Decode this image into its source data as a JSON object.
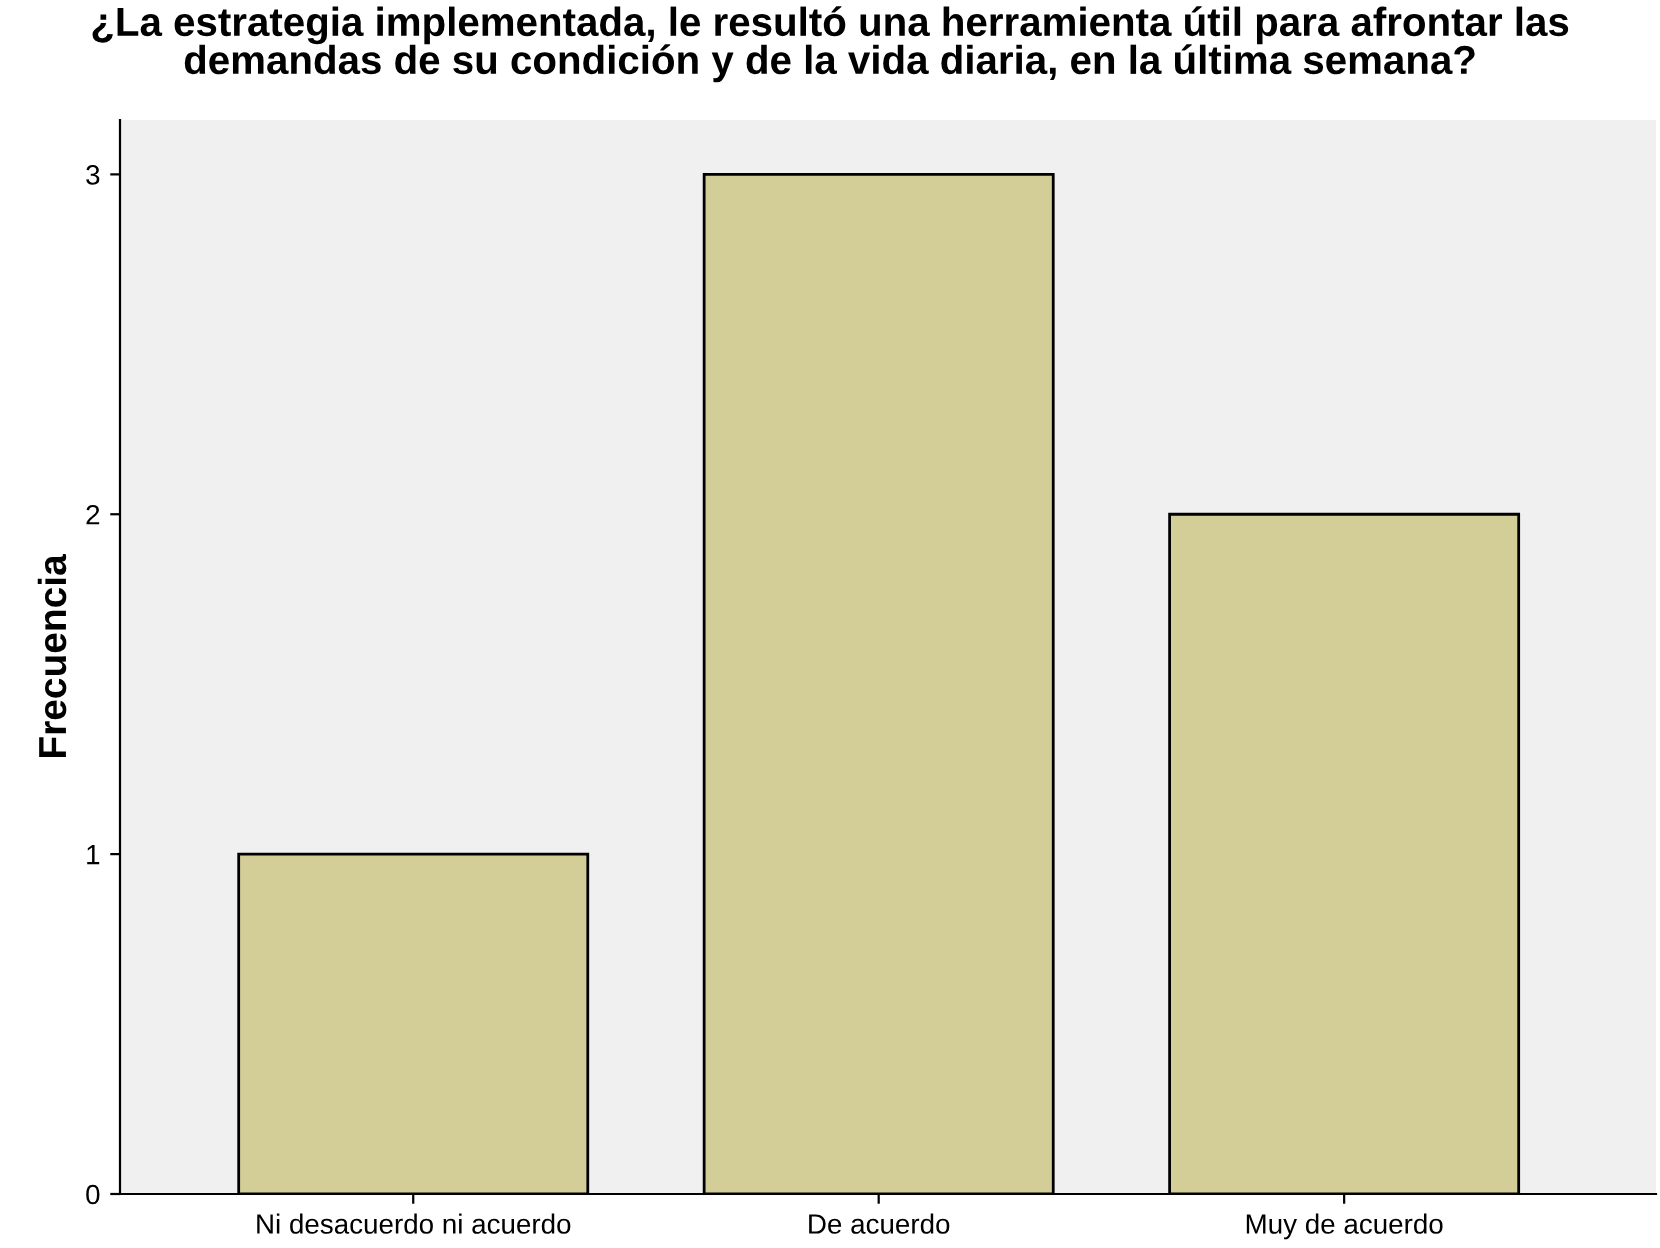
{
  "chart_data": {
    "type": "bar",
    "title": "¿La estrategia implementada, le resultó una herramienta útil para afrontar las\ndemandas de su condición y de la vida diaria, en la última semana?",
    "ylabel": "Frecuencia",
    "categories": [
      "Ni desacuerdo ni acuerdo",
      "De acuerdo",
      "Muy de acuerdo"
    ],
    "values": [
      1,
      3,
      2
    ],
    "color": "#d3ce98",
    "ylim": [
      0,
      3.16
    ],
    "yticks": [
      0,
      1,
      2,
      3
    ],
    "grid": false,
    "legend": false
  }
}
